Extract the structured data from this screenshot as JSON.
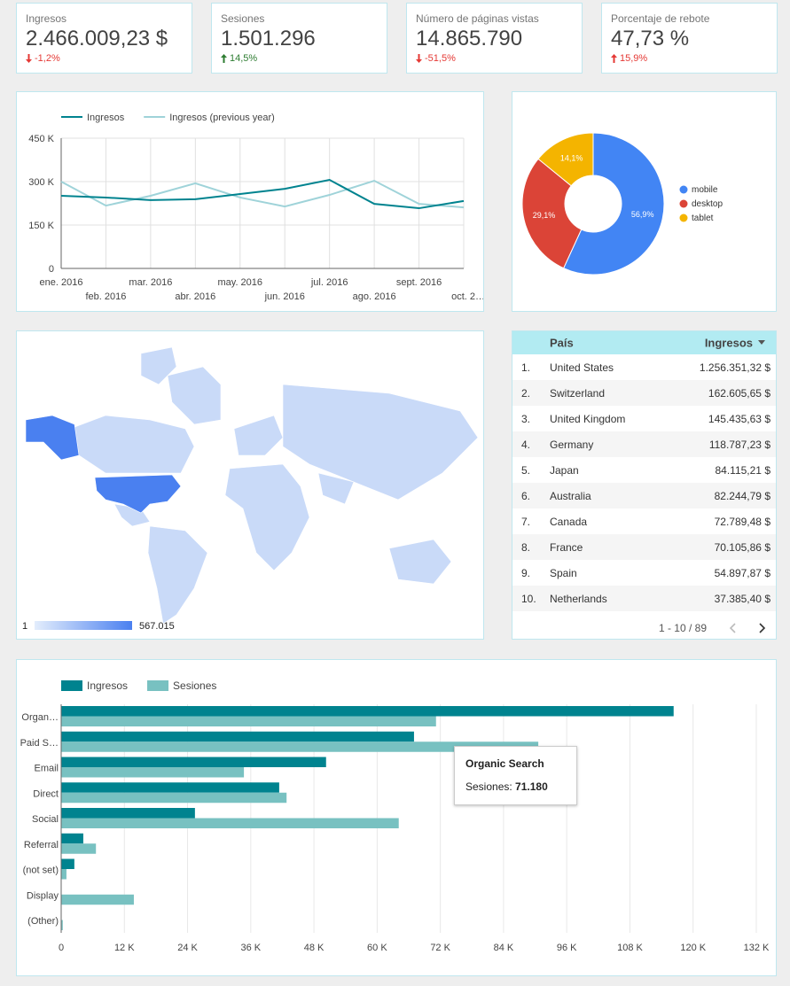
{
  "scorecards": [
    {
      "label": "Ingresos",
      "value": "2.466.009,23 $",
      "delta": "-1,2%",
      "direction": "down",
      "color": "#e53935"
    },
    {
      "label": "Sesiones",
      "value": "1.501.296",
      "delta": "14,5%",
      "direction": "up",
      "color": "#2e7d32"
    },
    {
      "label": "Número de páginas vistas",
      "value": "14.865.790",
      "delta": "-51,5%",
      "direction": "down",
      "color": "#e53935"
    },
    {
      "label": "Porcentaje de rebote",
      "value": "47,73 %",
      "delta": "15,9%",
      "direction": "up",
      "color": "#e53935"
    }
  ],
  "chart_data": [
    {
      "type": "line",
      "categories": [
        "ene. 2016",
        "feb. 2016",
        "mar. 2016",
        "abr. 2016",
        "may. 2016",
        "jun. 2016",
        "jul. 2016",
        "ago. 2016",
        "sept. 2016",
        "oct. 2…"
      ],
      "series": [
        {
          "name": "Ingresos",
          "color": "#00838f",
          "values": [
            251000,
            245000,
            236000,
            239000,
            257000,
            275000,
            306000,
            223000,
            208000,
            233000
          ]
        },
        {
          "name": "Ingresos (previous year)",
          "color": "#9fd3d9",
          "values": [
            300000,
            217000,
            251000,
            294000,
            245000,
            214000,
            254000,
            303000,
            223000,
            211000
          ]
        }
      ],
      "ylim": [
        0,
        450000
      ],
      "yticks": [
        0,
        {
          "value": 150000,
          "label": "150 K"
        },
        {
          "value": 300000,
          "label": "300 K"
        },
        {
          "value": 450000,
          "label": "450 K"
        }
      ],
      "grid": true
    },
    {
      "type": "pie",
      "categories": [
        "mobile",
        "desktop",
        "tablet"
      ],
      "values": [
        56.9,
        29.1,
        14.1
      ],
      "value_labels": [
        "56,9%",
        "29,1%",
        "14,1%"
      ],
      "colors": [
        "#4285f4",
        "#db4437",
        "#f4b400"
      ]
    },
    {
      "type": "bar",
      "orientation": "horizontal",
      "categories": [
        "Organ…",
        "Paid S…",
        "Email",
        "Direct",
        "Social",
        "Referral",
        "(not set)",
        "Display",
        "(Other)"
      ],
      "series": [
        {
          "name": "Ingresos",
          "color": "#00838f",
          "values": [
            116300,
            67000,
            50300,
            41400,
            25400,
            4200,
            2500,
            0,
            0
          ]
        },
        {
          "name": "Sesiones",
          "color": "#78c1c1",
          "values": [
            71180,
            90600,
            34700,
            42800,
            64100,
            6600,
            1000,
            13800,
            300
          ]
        }
      ],
      "xlim": [
        0,
        132000
      ],
      "xticks": [
        0,
        {
          "value": 12000,
          "label": "12 K"
        },
        {
          "value": 24000,
          "label": "24 K"
        },
        {
          "value": 36000,
          "label": "36 K"
        },
        {
          "value": 48000,
          "label": "48 K"
        },
        {
          "value": 60000,
          "label": "60 K"
        },
        {
          "value": 72000,
          "label": "72 K"
        },
        {
          "value": 84000,
          "label": "84 K"
        },
        {
          "value": 96000,
          "label": "96 K"
        },
        {
          "value": 108000,
          "label": "108 K"
        },
        {
          "value": 120000,
          "label": "120 K"
        },
        {
          "value": 132000,
          "label": "132 K"
        }
      ],
      "grid": true,
      "tooltip": {
        "title": "Organic Search",
        "label": "Sesiones:",
        "value": "71.180"
      }
    }
  ],
  "map": {
    "scale_ticks": [
      1,
      {
        "value": 567015,
        "label": "567.015"
      }
    ],
    "colors": [
      "#e3edfc",
      "#4a80f0"
    ]
  },
  "table": {
    "columns": [
      "País",
      "Ingresos"
    ],
    "rows": [
      [
        "1.",
        "United States",
        "1.256.351,32 $"
      ],
      [
        "2.",
        "Switzerland",
        "162.605,65 $"
      ],
      [
        "3.",
        "United Kingdom",
        "145.435,63 $"
      ],
      [
        "4.",
        "Germany",
        "118.787,23 $"
      ],
      [
        "5.",
        "Japan",
        "84.115,21 $"
      ],
      [
        "6.",
        "Australia",
        "82.244,79 $"
      ],
      [
        "7.",
        "Canada",
        "72.789,48 $"
      ],
      [
        "8.",
        "France",
        "70.105,86 $"
      ],
      [
        "9.",
        "Spain",
        "54.897,87 $"
      ],
      [
        "10.",
        "Netherlands",
        "37.385,40 $"
      ]
    ],
    "pagination": "1 - 10 / 89"
  }
}
